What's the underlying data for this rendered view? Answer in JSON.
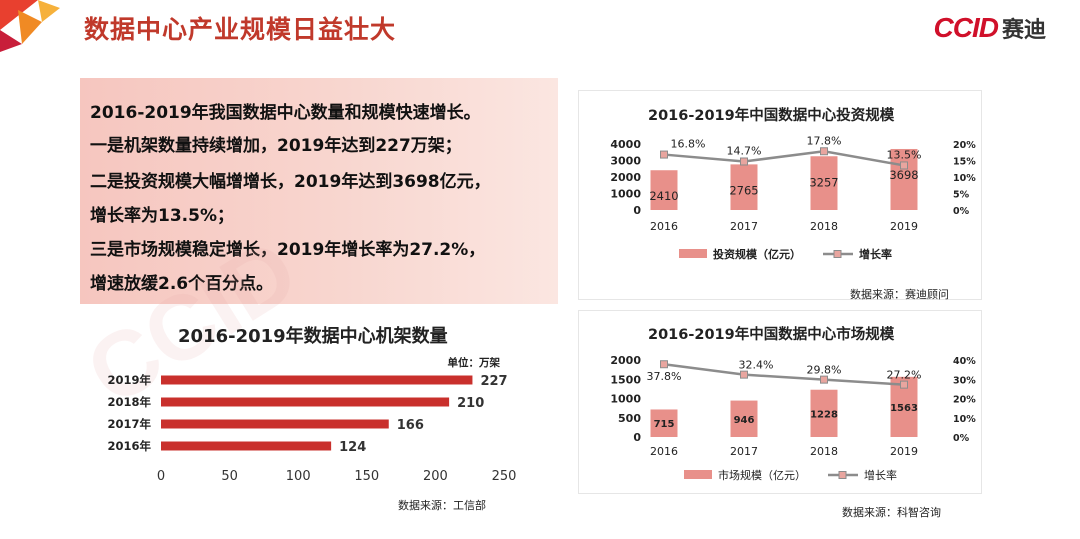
{
  "page": {
    "title": "数据中心产业规模日益壮大",
    "logo_text": "CCID",
    "logo_cn": "赛迪"
  },
  "summary": {
    "lines": [
      "2016-2019年我国数据中心数量和规模快速增长。",
      "一是机架数量持续增加，2019年达到227万架；",
      "二是投资规模大幅增增长，2019年达到3698亿元，",
      "增长率为13.5%；",
      "三是市场规模稳定增长，2019年增长率为27.2%，",
      "增速放缓2.6个百分点。"
    ]
  },
  "colors": {
    "title_red": "#c0392b",
    "bar_red": "#c9302c",
    "bar_pink": "#e8908a",
    "line_gray": "#8c8c8c"
  },
  "chart_data": [
    {
      "id": "racks",
      "type": "bar",
      "orientation": "horizontal",
      "title": "2016-2019年数据中心机架数量",
      "unit_label": "单位：万架",
      "categories": [
        "2019年",
        "2018年",
        "2017年",
        "2016年"
      ],
      "values": [
        227,
        210,
        166,
        124
      ],
      "xlim": [
        0,
        250
      ],
      "x_ticks": [
        "0",
        "50",
        "100",
        "150",
        "200",
        "250"
      ],
      "source": "数据来源：工信部"
    },
    {
      "id": "investment",
      "type": "bar",
      "title": "2016-2019年中国数据中心投资规模",
      "categories": [
        "2016",
        "2017",
        "2018",
        "2019"
      ],
      "series": [
        {
          "name": "投资规模（亿元）",
          "kind": "bar",
          "values": [
            2410,
            2765,
            3257,
            3698
          ],
          "labels": [
            "2410",
            "2765",
            "3257",
            "3698"
          ]
        },
        {
          "name": "增长率",
          "kind": "line",
          "axis": "right",
          "values": [
            16.8,
            14.7,
            17.8,
            13.5
          ],
          "labels": [
            "16.8%",
            "14.7%",
            "17.8%",
            "13.5%"
          ]
        }
      ],
      "ylim": [
        0,
        4000
      ],
      "y_ticks": [
        "0",
        "1000",
        "2000",
        "3000",
        "4000"
      ],
      "y2lim": [
        0,
        20
      ],
      "y2_ticks": [
        "0%",
        "5%",
        "10%",
        "15%",
        "20%"
      ],
      "legend_position": "bottom",
      "source": "数据来源：赛迪顾问"
    },
    {
      "id": "market",
      "type": "bar",
      "title": "2016-2019年中国数据中心市场规模",
      "categories": [
        "2016",
        "2017",
        "2018",
        "2019"
      ],
      "series": [
        {
          "name": "市场规模（亿元）",
          "kind": "bar",
          "values": [
            715,
            946,
            1228,
            1563
          ],
          "labels": [
            "715",
            "946",
            "1228",
            "1563"
          ]
        },
        {
          "name": "增长率",
          "kind": "line",
          "axis": "right",
          "values": [
            37.8,
            32.4,
            29.8,
            27.2
          ],
          "labels": [
            "37.8%",
            "32.4%",
            "29.8%",
            "27.2%"
          ]
        }
      ],
      "ylim": [
        0,
        2000
      ],
      "y_ticks": [
        "0",
        "500",
        "1000",
        "1500",
        "2000"
      ],
      "y2lim": [
        0,
        40
      ],
      "y2_ticks": [
        "0%",
        "10%",
        "20%",
        "30%",
        "40%"
      ],
      "legend_position": "bottom",
      "source": "数据来源：科智咨询"
    }
  ]
}
